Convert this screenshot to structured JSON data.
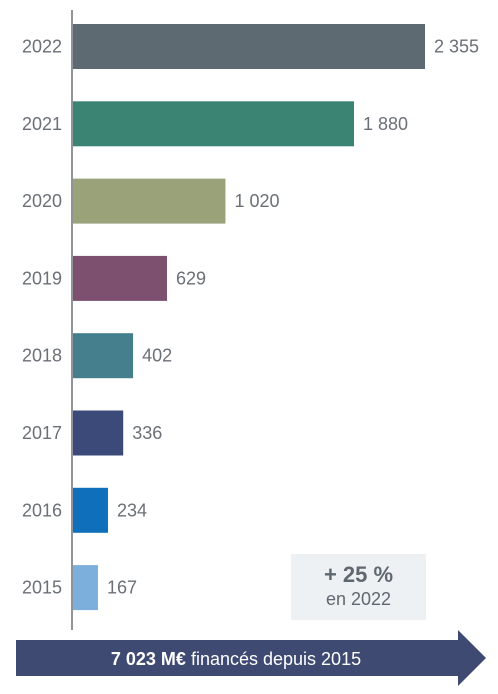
{
  "chart_data": {
    "type": "bar",
    "orientation": "horizontal",
    "categories": [
      "2022",
      "2021",
      "2020",
      "2019",
      "2018",
      "2017",
      "2016",
      "2015"
    ],
    "values": [
      2355,
      1880,
      1020,
      629,
      402,
      336,
      234,
      167
    ],
    "value_labels": [
      "2 355",
      "1 880",
      "1 020",
      "629",
      "402",
      "336",
      "234",
      "167"
    ],
    "colors": [
      "#5e6a72",
      "#3b8474",
      "#9aa27a",
      "#7d5070",
      "#457e8c",
      "#3b4a78",
      "#0f6fba",
      "#7dafdc"
    ],
    "title": "",
    "xlabel": "",
    "ylabel": ""
  },
  "callout": {
    "value": "+ 25 %",
    "caption": "en 2022"
  },
  "banner": {
    "amount": "7 023 M€",
    "text": " financés  depuis 2015",
    "color": "#3f4a72"
  }
}
